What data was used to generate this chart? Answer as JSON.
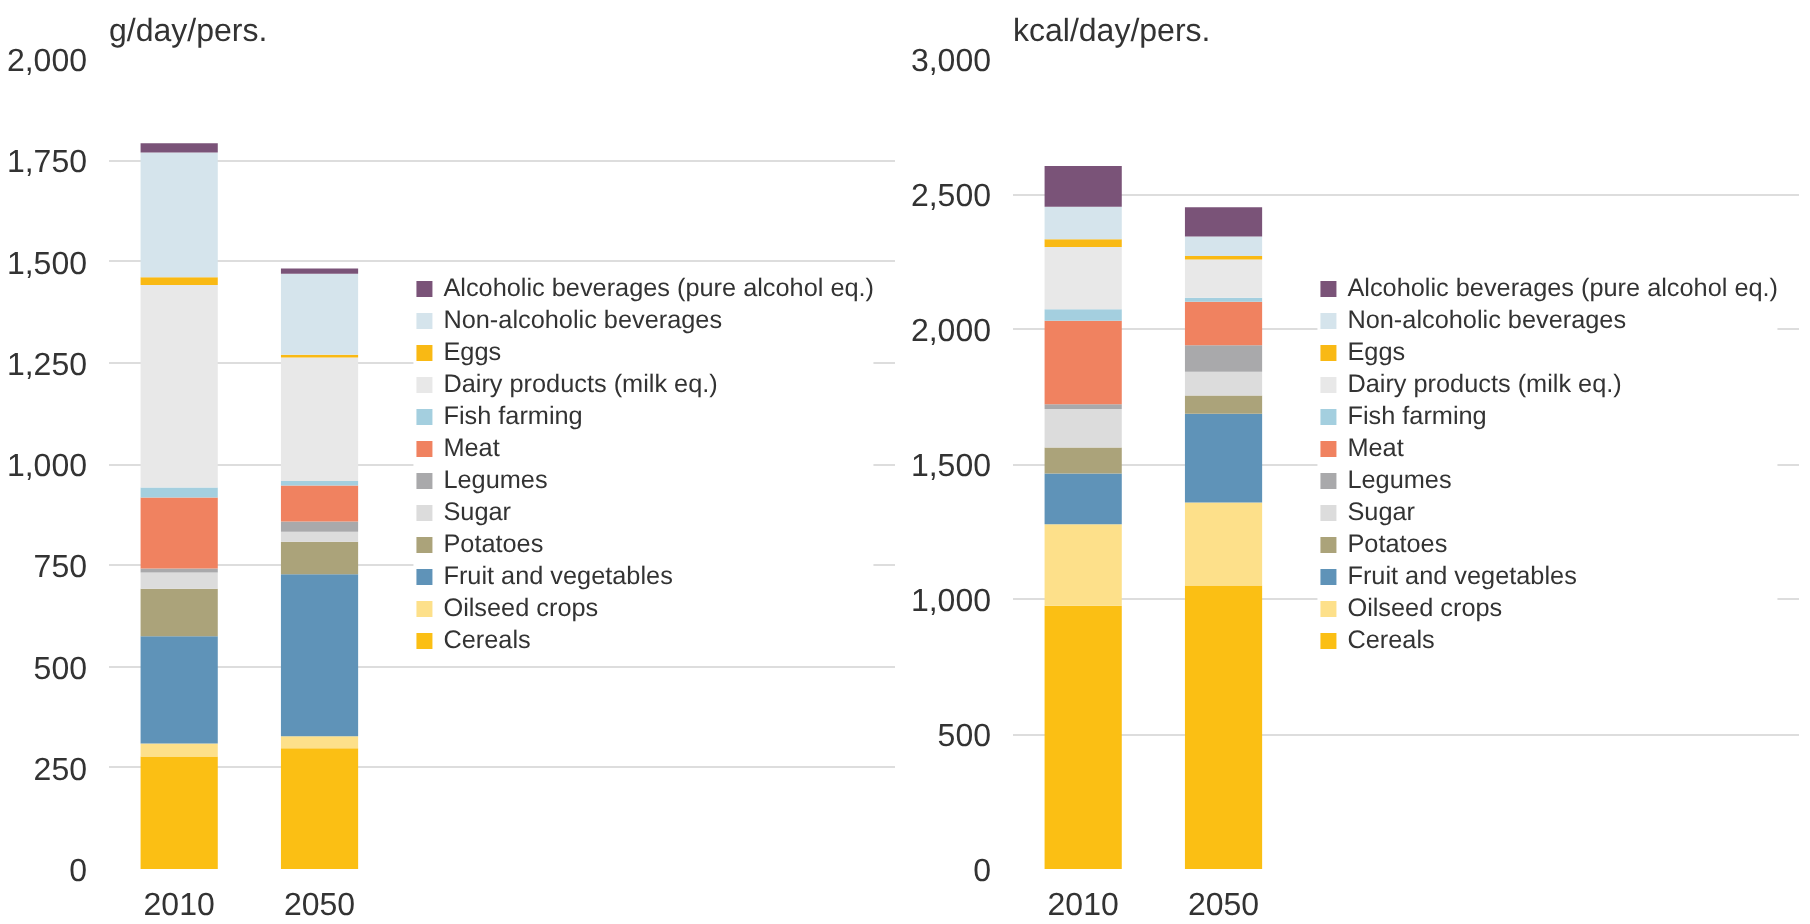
{
  "chart_data": [
    {
      "type": "bar",
      "stacked": true,
      "ylabel": "g/day/pers.",
      "categories": [
        "2010",
        "2050"
      ],
      "ylim": [
        0,
        2000
      ],
      "yticks": [
        0,
        250,
        500,
        750,
        {
          "value": 1000,
          "label": "1,000"
        },
        {
          "value": 1250,
          "label": "1,250"
        },
        {
          "value": 1500,
          "label": "1,500"
        },
        {
          "value": 1750,
          "label": "1,750"
        },
        {
          "value": 2000,
          "label": "2,000"
        }
      ],
      "grid": "y",
      "legend": "right",
      "series": [
        {
          "name": "Cereals",
          "color": "#fbbf14",
          "values": [
            278,
            298
          ]
        },
        {
          "name": "Oilseed crops",
          "color": "#fde08a",
          "values": [
            32,
            30
          ]
        },
        {
          "name": "Fruit and vegetables",
          "color": "#5f93b8",
          "values": [
            265,
            400
          ]
        },
        {
          "name": "Potatoes",
          "color": "#aba37a",
          "values": [
            117,
            80
          ]
        },
        {
          "name": "Sugar",
          "color": "#dcdcdc",
          "values": [
            40,
            25
          ]
        },
        {
          "name": "Legumes",
          "color": "#a9a9ab",
          "values": [
            10,
            25
          ]
        },
        {
          "name": "Meat",
          "color": "#f08260",
          "values": [
            175,
            89
          ]
        },
        {
          "name": "Fish farming",
          "color": "#a4cfdf",
          "values": [
            25,
            11
          ]
        },
        {
          "name": "Dairy products (milk eq.)",
          "color": "#e8e8e8",
          "values": [
            500,
            305
          ]
        },
        {
          "name": "Eggs",
          "color": "#f9b914",
          "values": [
            19,
            7
          ]
        },
        {
          "name": "Non-alcoholic beverages",
          "color": "#d5e4ec",
          "values": [
            308,
            200
          ]
        },
        {
          "name": "Alcoholic beverages (pure alcohol eq.)",
          "color": "#7a5378",
          "values": [
            23,
            13
          ]
        }
      ]
    },
    {
      "type": "bar",
      "stacked": true,
      "ylabel": "kcal/day/pers.",
      "categories": [
        "2010",
        "2050"
      ],
      "ylim": [
        0,
        3000
      ],
      "yticks": [
        0,
        500,
        {
          "value": 1000,
          "label": "1,000"
        },
        {
          "value": 1500,
          "label": "1,500"
        },
        {
          "value": 2000,
          "label": "2,000"
        },
        {
          "value": 2500,
          "label": "2,500"
        },
        {
          "value": 3000,
          "label": "3,000"
        }
      ],
      "grid": "y",
      "legend": "right",
      "series": [
        {
          "name": "Cereals",
          "color": "#fbbf14",
          "values": [
            975,
            1050
          ]
        },
        {
          "name": "Oilseed crops",
          "color": "#fde08a",
          "values": [
            302,
            307
          ]
        },
        {
          "name": "Fruit and vegetables",
          "color": "#5f93b8",
          "values": [
            188,
            329
          ]
        },
        {
          "name": "Potatoes",
          "color": "#aba37a",
          "values": [
            96,
            68
          ]
        },
        {
          "name": "Sugar",
          "color": "#dcdcdc",
          "values": [
            143,
            88
          ]
        },
        {
          "name": "Legumes",
          "color": "#a9a9ab",
          "values": [
            17,
            98
          ]
        },
        {
          "name": "Meat",
          "color": "#f08260",
          "values": [
            310,
            161
          ]
        },
        {
          "name": "Fish farming",
          "color": "#a4cfdf",
          "values": [
            42,
            15
          ]
        },
        {
          "name": "Dairy products (milk eq.)",
          "color": "#e8e8e8",
          "values": [
            231,
            141
          ]
        },
        {
          "name": "Eggs",
          "color": "#f9b914",
          "values": [
            28,
            13
          ]
        },
        {
          "name": "Non-alcoholic beverages",
          "color": "#d5e4ec",
          "values": [
            121,
            73
          ]
        },
        {
          "name": "Alcoholic beverages (pure alcohol eq.)",
          "color": "#7a5378",
          "values": [
            151,
            108
          ]
        }
      ]
    }
  ]
}
